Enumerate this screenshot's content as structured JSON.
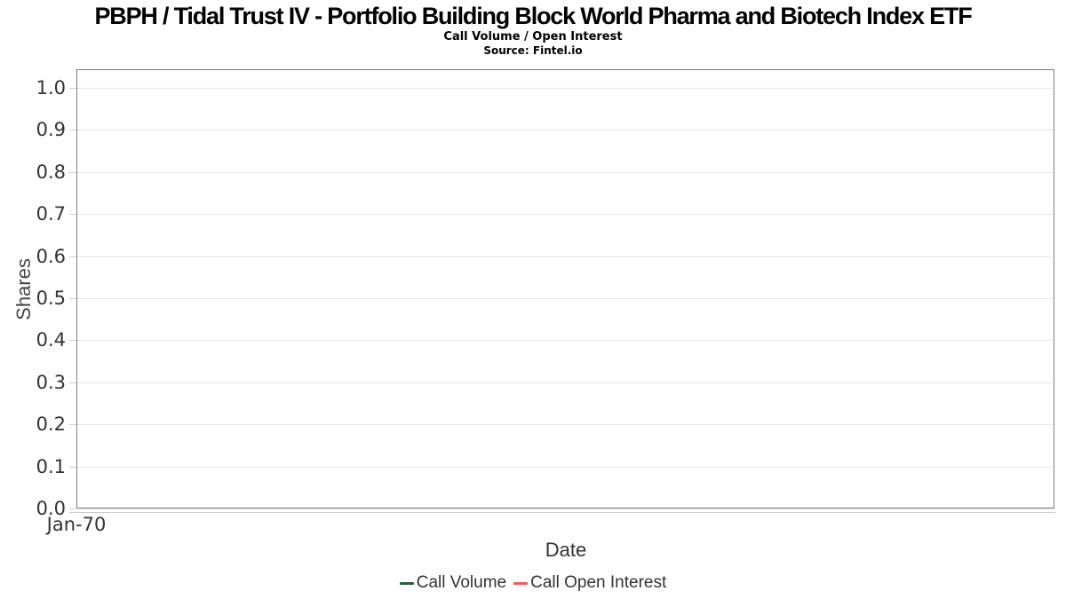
{
  "title": "PBPH / Tidal Trust IV - Portfolio Building Block World Pharma and Biotech Index ETF",
  "subtitle": "Call Volume / Open Interest",
  "source": "Source: Fintel.io",
  "colors": {
    "call_volume": "#2a5b3c",
    "call_open_interest": "#f45b5b",
    "gridline": "#e6e6e6",
    "plot_border": "#7d7d7d",
    "axis_line": "#c9cdd3",
    "tick_label": "#333333"
  },
  "chart_data": {
    "type": "line",
    "title": "PBPH / Tidal Trust IV - Portfolio Building Block World Pharma and Biotech Index ETF",
    "subtitle": "Call Volume / Open Interest",
    "source": "Source: Fintel.io",
    "xlabel": "Date",
    "ylabel": "Shares",
    "x_ticks": [
      "Jan-70"
    ],
    "y_ticks": [
      "0.0",
      "0.1",
      "0.2",
      "0.3",
      "0.4",
      "0.5",
      "0.6",
      "0.7",
      "0.8",
      "0.9",
      "1.0"
    ],
    "ylim": [
      0.0,
      1.044
    ],
    "grid": true,
    "legend_position": "bottom",
    "series": [
      {
        "name": "Call Volume",
        "color": "#2a5b3c",
        "x": [],
        "values": []
      },
      {
        "name": "Call Open Interest",
        "color": "#f45b5b",
        "x": [],
        "values": []
      }
    ]
  }
}
